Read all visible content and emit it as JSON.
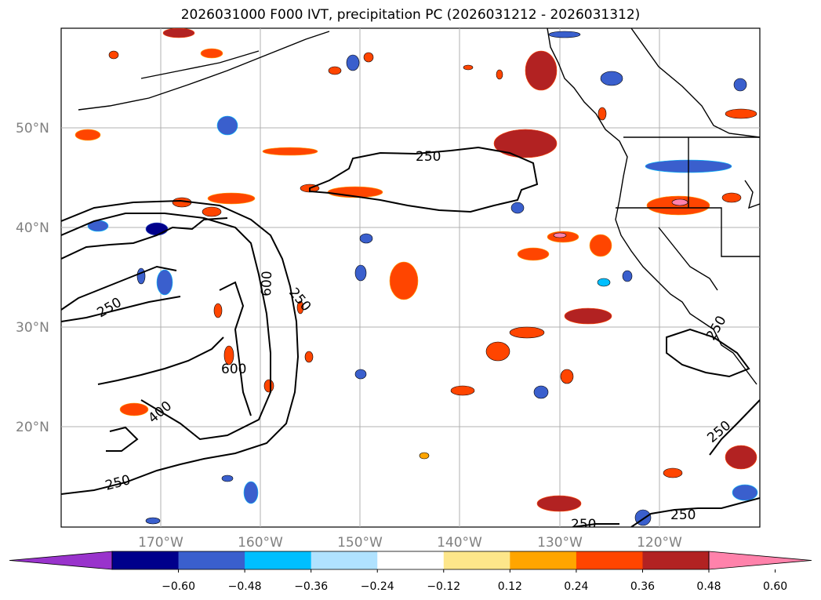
{
  "title": "2026031000 F000 IVT, precipitation PC (2026031212 - 2026031312)",
  "map": {
    "lat_labels": [
      "50°N",
      "40°N",
      "30°N",
      "20°N"
    ],
    "lon_labels": [
      "170°W",
      "160°W",
      "150°W",
      "140°W",
      "130°W",
      "120°W"
    ],
    "contour_labels": [
      "250",
      "250",
      "250",
      "600",
      "600",
      "400",
      "250",
      "250",
      "250",
      "250",
      "250"
    ]
  },
  "colorbar": {
    "colors": [
      "#9933cc",
      "#00008b",
      "#3a5fcd",
      "#00bfff",
      "#b0e2ff",
      "#ffffff",
      "#fde68a",
      "#ffa500",
      "#ff4500",
      "#b22222",
      "#ff82ab"
    ],
    "ticks": [
      "−0.60",
      "−0.48",
      "−0.36",
      "−0.24",
      "−0.12",
      "0.12",
      "0.24",
      "0.36",
      "0.48",
      "0.60"
    ]
  }
}
